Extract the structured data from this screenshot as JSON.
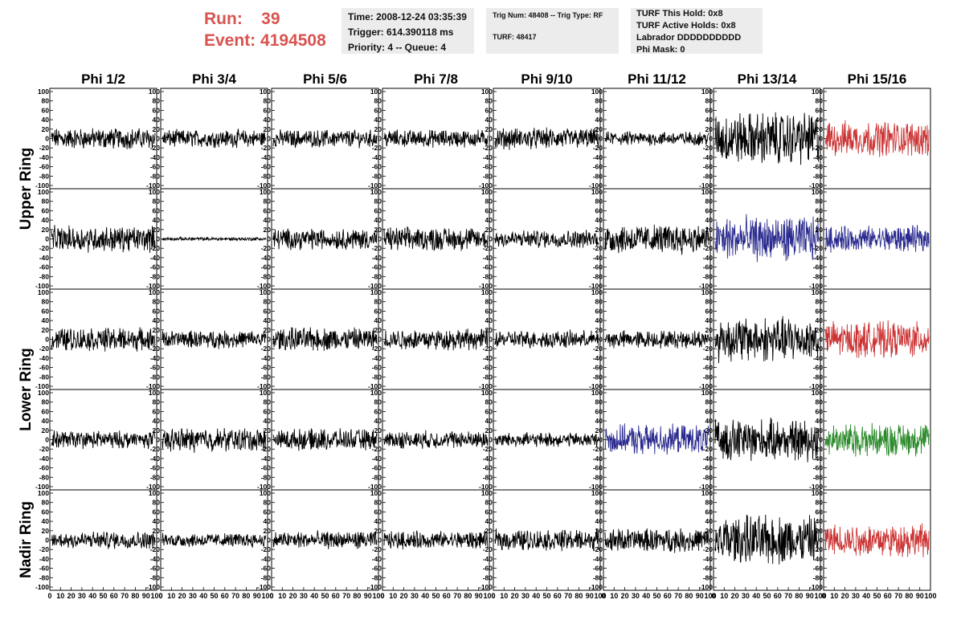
{
  "header": {
    "run_label": "Run:",
    "run_value": "39",
    "event_label": "Event:",
    "event_value": "4194508"
  },
  "info_time": {
    "time": "Time: 2008-12-24 03:35:39",
    "trigger": "Trigger: 614.390118 ms",
    "priority": "Priority: 4 -- Queue: 4"
  },
  "info_trig": {
    "trig": "Trig Num: 48408 -- Trig Type: RF",
    "turf": "TURF: 48417"
  },
  "info_turf": {
    "hold": "TURF This Hold: 0x8",
    "active": "TURF Active Holds: 0x8",
    "labrador": "Labrador DDDDDDDDDD",
    "phimask": "Phi Mask: 0"
  },
  "columns": [
    "Phi 1/2",
    "Phi 3/4",
    "Phi 5/6",
    "Phi 7/8",
    "Phi 9/10",
    "Phi 11/12",
    "Phi 13/14",
    "Phi 15/16"
  ],
  "rows": [
    "Upper Ring",
    "Lower Ring",
    "Nadir Ring"
  ],
  "colors": {
    "red": "#cc3333",
    "blue": "#2b2b8f",
    "green": "#2a8a2a",
    "black": "#000000"
  },
  "chart_data": {
    "type": "line",
    "ylim": [
      -100,
      100
    ],
    "xlim": [
      0,
      100
    ],
    "y_ticks": [
      "100",
      "80",
      "60",
      "40",
      "20",
      "0",
      "-20",
      "-40",
      "-60",
      "-80",
      "-100"
    ],
    "x_ticks": [
      "0",
      "10",
      "20",
      "30",
      "40",
      "50",
      "60",
      "70",
      "80",
      "90",
      "100"
    ],
    "panels": [
      [
        {
          "color": "black",
          "amp": 18
        },
        {
          "color": "black",
          "amp": 15
        },
        {
          "color": "black",
          "amp": 15
        },
        {
          "color": "black",
          "amp": 15
        },
        {
          "color": "black",
          "amp": 18
        },
        {
          "color": "black",
          "amp": 12
        },
        {
          "color": "black",
          "amp": 45
        },
        {
          "color": "red",
          "amp": 30
        }
      ],
      [
        {
          "color": "black",
          "amp": 22
        },
        {
          "color": "black",
          "amp": 3
        },
        {
          "color": "black",
          "amp": 18
        },
        {
          "color": "black",
          "amp": 20
        },
        {
          "color": "black",
          "amp": 15
        },
        {
          "color": "black",
          "amp": 25
        },
        {
          "color": "blue",
          "amp": 38
        },
        {
          "color": "blue",
          "amp": 22
        }
      ],
      [
        {
          "color": "black",
          "amp": 20
        },
        {
          "color": "black",
          "amp": 15
        },
        {
          "color": "black",
          "amp": 20
        },
        {
          "color": "black",
          "amp": 18
        },
        {
          "color": "black",
          "amp": 15
        },
        {
          "color": "black",
          "amp": 15
        },
        {
          "color": "black",
          "amp": 38
        },
        {
          "color": "red",
          "amp": 30
        }
      ],
      [
        {
          "color": "black",
          "amp": 15
        },
        {
          "color": "black",
          "amp": 20
        },
        {
          "color": "black",
          "amp": 18
        },
        {
          "color": "black",
          "amp": 15
        },
        {
          "color": "black",
          "amp": 12
        },
        {
          "color": "blue",
          "amp": 25
        },
        {
          "color": "black",
          "amp": 35
        },
        {
          "color": "green",
          "amp": 28
        }
      ],
      [
        {
          "color": "black",
          "amp": 15
        },
        {
          "color": "black",
          "amp": 12
        },
        {
          "color": "black",
          "amp": 15
        },
        {
          "color": "black",
          "amp": 15
        },
        {
          "color": "black",
          "amp": 18
        },
        {
          "color": "black",
          "amp": 20
        },
        {
          "color": "black",
          "amp": 42
        },
        {
          "color": "red",
          "amp": 28
        }
      ]
    ]
  }
}
